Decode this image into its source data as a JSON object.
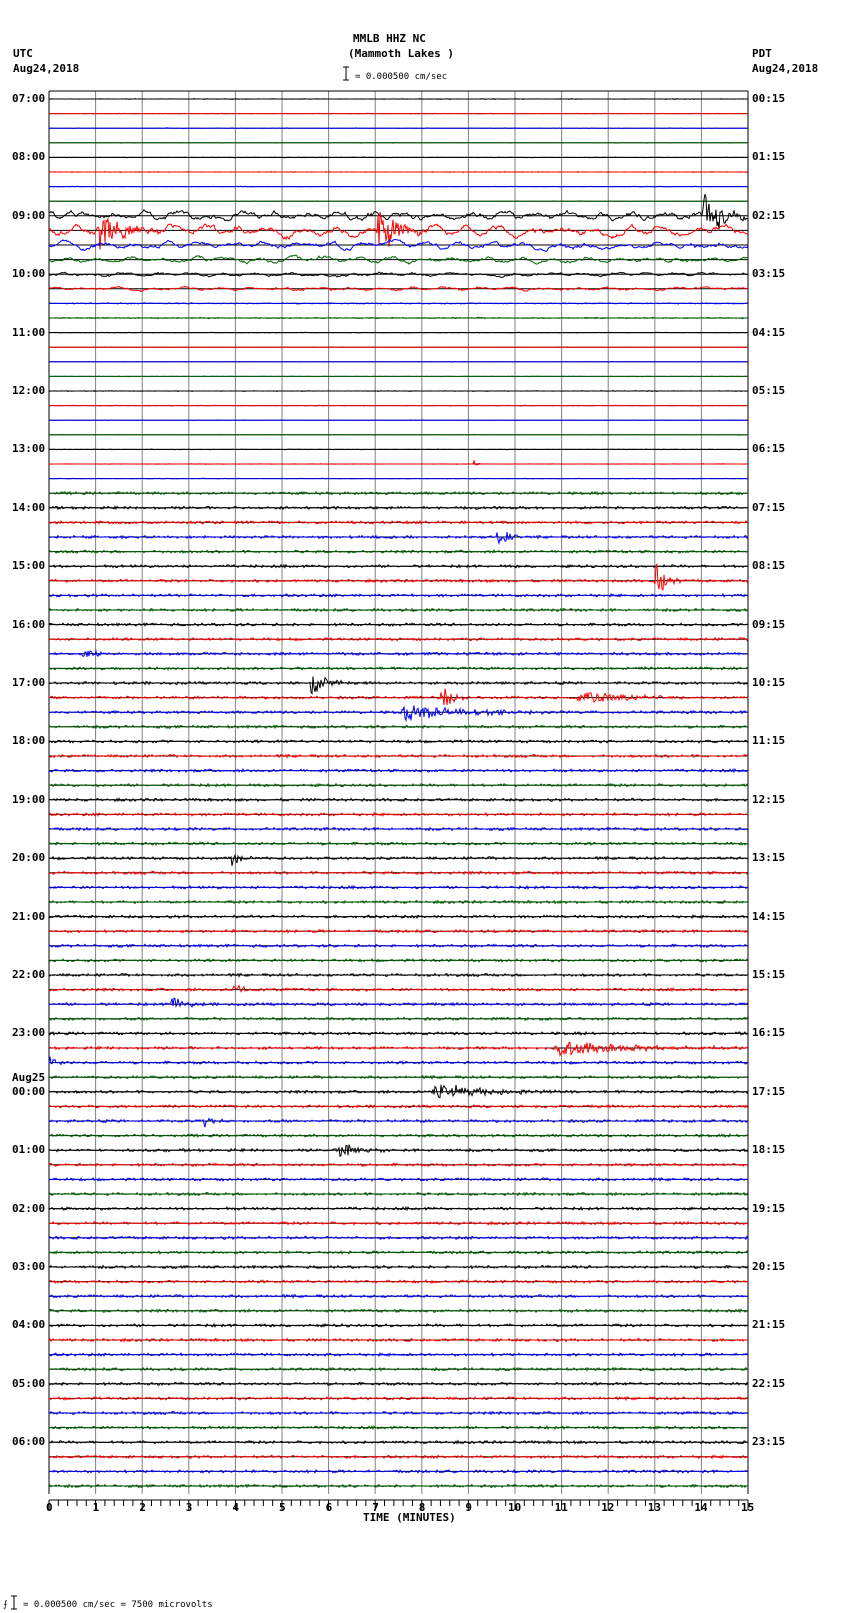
{
  "header": {
    "station": "MMLB HHZ NC",
    "location": "(Mammoth Lakes )",
    "scale": "= 0.000500 cm/sec",
    "left_tz": "UTC",
    "left_date": "Aug24,2018",
    "right_tz": "PDT",
    "right_date": "Aug24,2018"
  },
  "footer": {
    "xlabel": "TIME (MINUTES)",
    "scale_note": "= 0.000500 cm/sec =    7500 microvolts"
  },
  "colors": {
    "trace": [
      "#000000",
      "#ff0000",
      "#0000ff",
      "#006400"
    ],
    "grid": "#808080"
  },
  "chart_data": {
    "type": "line",
    "title": "MMLB HHZ NC (Mammoth Lakes )",
    "subtitle": "= 0.000500 cm/sec",
    "xlabel": "TIME (MINUTES)",
    "ylabel": "",
    "xlim": [
      0,
      15
    ],
    "x_ticks": [
      0,
      1,
      2,
      3,
      4,
      5,
      6,
      7,
      8,
      9,
      10,
      11,
      12,
      13,
      14,
      15
    ],
    "grid": true,
    "traces_per_hour": 4,
    "trace_count": 96,
    "left_labels": [
      "07:00",
      "08:00",
      "09:00",
      "10:00",
      "11:00",
      "12:00",
      "13:00",
      "14:00",
      "15:00",
      "16:00",
      "17:00",
      "18:00",
      "19:00",
      "20:00",
      "21:00",
      "22:00",
      "23:00",
      "00:00",
      "01:00",
      "02:00",
      "03:00",
      "04:00",
      "05:00",
      "06:00"
    ],
    "left_date_marker": {
      "hour_index": 17,
      "text": "Aug25"
    },
    "right_labels": [
      "00:15",
      "01:15",
      "02:15",
      "03:15",
      "04:15",
      "05:15",
      "06:15",
      "07:15",
      "08:15",
      "09:15",
      "10:15",
      "11:15",
      "12:15",
      "13:15",
      "14:15",
      "15:15",
      "16:15",
      "17:15",
      "18:15",
      "19:15",
      "20:15",
      "21:15",
      "22:15",
      "23:15"
    ],
    "noise_by_row": {
      "default": 0.6,
      "quiet_rows": [
        0,
        1,
        2,
        3,
        4,
        5,
        6,
        7,
        16,
        17,
        18,
        19,
        20,
        21,
        22,
        23,
        24,
        25,
        26
      ],
      "busy_from_row": 27,
      "busy_level": 1.4
    },
    "events": [
      {
        "row": 8,
        "minute": 0.0,
        "dur": 15,
        "amp": 8,
        "kind": "lowfreq"
      },
      {
        "row": 9,
        "minute": 0.0,
        "dur": 15,
        "amp": 9,
        "kind": "lowfreq"
      },
      {
        "row": 10,
        "minute": 0.0,
        "dur": 15,
        "amp": 6,
        "kind": "lowfreq"
      },
      {
        "row": 11,
        "minute": 0.0,
        "dur": 15,
        "amp": 5,
        "kind": "lowfreq"
      },
      {
        "row": 12,
        "minute": 0.0,
        "dur": 15,
        "amp": 3,
        "kind": "lowfreq"
      },
      {
        "row": 13,
        "minute": 0.0,
        "dur": 15,
        "amp": 3,
        "kind": "lowfreq"
      },
      {
        "row": 9,
        "minute": 1.0,
        "dur": 1.5,
        "amp": 22,
        "kind": "burst"
      },
      {
        "row": 9,
        "minute": 7.0,
        "dur": 1.2,
        "amp": 30,
        "kind": "burst"
      },
      {
        "row": 8,
        "minute": 14.0,
        "dur": 1.0,
        "amp": 30,
        "kind": "burst"
      },
      {
        "row": 25,
        "minute": 9.1,
        "dur": 0.2,
        "amp": 5,
        "kind": "burst"
      },
      {
        "row": 30,
        "minute": 9.6,
        "dur": 0.8,
        "amp": 12,
        "kind": "burst"
      },
      {
        "row": 33,
        "minute": 13.0,
        "dur": 0.6,
        "amp": 22,
        "kind": "burst"
      },
      {
        "row": 38,
        "minute": 0.7,
        "dur": 0.8,
        "amp": 6,
        "kind": "burst"
      },
      {
        "row": 40,
        "minute": 5.6,
        "dur": 0.8,
        "amp": 18,
        "kind": "burst"
      },
      {
        "row": 41,
        "minute": 8.4,
        "dur": 0.6,
        "amp": 16,
        "kind": "burst"
      },
      {
        "row": 41,
        "minute": 11.3,
        "dur": 3.0,
        "amp": 8,
        "kind": "burst"
      },
      {
        "row": 42,
        "minute": 7.5,
        "dur": 3.5,
        "amp": 10,
        "kind": "burst"
      },
      {
        "row": 52,
        "minute": 3.9,
        "dur": 0.6,
        "amp": 10,
        "kind": "burst"
      },
      {
        "row": 61,
        "minute": 3.9,
        "dur": 0.6,
        "amp": 8,
        "kind": "burst"
      },
      {
        "row": 62,
        "minute": 2.6,
        "dur": 0.8,
        "amp": 8,
        "kind": "burst"
      },
      {
        "row": 65,
        "minute": 10.8,
        "dur": 4.2,
        "amp": 9,
        "kind": "burst"
      },
      {
        "row": 66,
        "minute": 0.0,
        "dur": 0.4,
        "amp": 8,
        "kind": "burst"
      },
      {
        "row": 68,
        "minute": 8.2,
        "dur": 3.0,
        "amp": 10,
        "kind": "burst"
      },
      {
        "row": 70,
        "minute": 3.3,
        "dur": 0.5,
        "amp": 10,
        "kind": "burst"
      },
      {
        "row": 72,
        "minute": 6.2,
        "dur": 1.0,
        "amp": 10,
        "kind": "burst"
      }
    ]
  }
}
